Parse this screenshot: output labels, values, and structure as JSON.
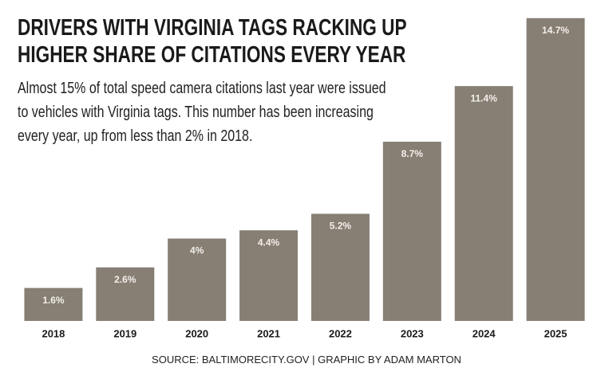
{
  "chart_data": {
    "type": "bar",
    "title": "DRIVERS WITH VIRGINIA TAGS RACKING UP HIGHER SHARE OF CITATIONS EVERY YEAR",
    "subtitle": "Almost 15% of total speed camera citations last year were issued to vehicles with Virginia tags. This number has been increasing every year, up from less than 2% in 2018.",
    "source": "SOURCE: BALTIMORECITY.GOV | GRAPHIC BY ADAM MARTON",
    "categories": [
      "2018",
      "2019",
      "2020",
      "2021",
      "2022",
      "2023",
      "2024",
      "2025"
    ],
    "values": [
      1.6,
      2.6,
      4,
      4.4,
      5.2,
      8.7,
      11.4,
      14.7
    ],
    "value_labels": [
      "1.6%",
      "2.6%",
      "4%",
      "4.4%",
      "5.2%",
      "8.7%",
      "11.4%",
      "14.7%"
    ],
    "color": "#877f74",
    "ylim": [
      0,
      15
    ]
  }
}
